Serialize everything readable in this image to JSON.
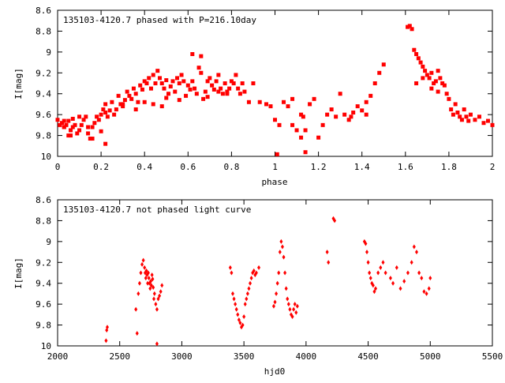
{
  "chart_data": [
    {
      "type": "scatter",
      "title": "135103-4120.7 phased with P=216.10day",
      "xlabel": "phase",
      "ylabel": "I[mag]",
      "xlim": [
        0,
        2
      ],
      "ylim": [
        10,
        8.6
      ],
      "y_inverted": true,
      "x_ticks": [
        "0",
        "0.2",
        "0.4",
        "0.6",
        "0.8",
        "1",
        "1.2",
        "1.4",
        "1.6",
        "1.8",
        "2"
      ],
      "y_ticks": [
        "8.6",
        "8.8",
        "9",
        "9.2",
        "9.4",
        "9.6",
        "9.8",
        "10"
      ],
      "grid": false,
      "marker_color": "#ff0000",
      "marker": "square",
      "series": [
        {
          "x": [
            0.0,
            0.01,
            0.02,
            0.03,
            0.03,
            0.04,
            0.05,
            0.05,
            0.06,
            0.07,
            0.07,
            0.08,
            0.09,
            0.1,
            0.1,
            0.11,
            0.12,
            0.13,
            0.14,
            0.14,
            0.15,
            0.16,
            0.17,
            0.18,
            0.19,
            0.2,
            0.2,
            0.21,
            0.22,
            0.22,
            0.23,
            0.24,
            0.25,
            0.26,
            0.27,
            0.28,
            0.29,
            0.3,
            0.31,
            0.32,
            0.33,
            0.34,
            0.35,
            0.36,
            0.37,
            0.38,
            0.39,
            0.4,
            0.41,
            0.42,
            0.43,
            0.44,
            0.45,
            0.46,
            0.47,
            0.48,
            0.49,
            0.5,
            0.51,
            0.52,
            0.53,
            0.54,
            0.55,
            0.56,
            0.57,
            0.58,
            0.59,
            0.6,
            0.61,
            0.62,
            0.63,
            0.64,
            0.65,
            0.66,
            0.67,
            0.68,
            0.69,
            0.7,
            0.71,
            0.72,
            0.73,
            0.74,
            0.75,
            0.76,
            0.77,
            0.78,
            0.79,
            0.8,
            0.81,
            0.82,
            0.83,
            0.84,
            0.85,
            0.86,
            0.88,
            0.9,
            0.93,
            0.96,
            0.98,
            1.0,
            1.02,
            1.04,
            1.06,
            1.08,
            1.1,
            1.12,
            1.13,
            1.14,
            1.16,
            1.18,
            1.2,
            1.22,
            1.24,
            1.26,
            1.28,
            1.3,
            1.32,
            1.34,
            1.36,
            1.38,
            1.4,
            1.42,
            1.44,
            1.46,
            1.48,
            1.5,
            1.62,
            1.63,
            1.64,
            1.65,
            1.66,
            1.67,
            1.68,
            1.69,
            1.7,
            1.71,
            1.72,
            1.73,
            1.74,
            1.75,
            1.76,
            1.77,
            1.78,
            1.79,
            1.8,
            1.81,
            1.82,
            1.83,
            1.84,
            1.85,
            1.86,
            1.87,
            1.88,
            1.89,
            1.9,
            1.92,
            1.94,
            1.96,
            1.98,
            2.0,
            0.62,
            0.66,
            0.69,
            0.44,
            0.48,
            0.36,
            0.22,
            0.16,
            0.06,
            0.03,
            0.3,
            0.4,
            0.5,
            0.56,
            0.74,
            0.78,
            1.14,
            1.12,
            1.01,
            1.08,
            1.35,
            1.42,
            1.65,
            1.72,
            1.61,
            1.68,
            1.75
          ],
          "y": [
            9.65,
            9.7,
            9.68,
            9.66,
            9.72,
            9.7,
            9.66,
            9.8,
            9.75,
            9.64,
            9.72,
            9.7,
            9.78,
            9.62,
            9.75,
            9.7,
            9.65,
            9.62,
            9.72,
            9.78,
            9.83,
            9.72,
            9.68,
            9.62,
            9.65,
            9.6,
            9.76,
            9.55,
            9.58,
            9.5,
            9.62,
            9.56,
            9.48,
            9.6,
            9.55,
            9.42,
            9.5,
            9.52,
            9.46,
            9.38,
            9.42,
            9.45,
            9.35,
            9.4,
            9.48,
            9.32,
            9.36,
            9.28,
            9.3,
            9.25,
            9.35,
            9.22,
            9.3,
            9.18,
            9.25,
            9.3,
            9.35,
            9.27,
            9.4,
            9.33,
            9.28,
            9.38,
            9.25,
            9.3,
            9.22,
            9.28,
            9.42,
            9.32,
            9.36,
            9.28,
            9.35,
            9.4,
            9.15,
            9.2,
            9.45,
            9.38,
            9.43,
            9.25,
            9.32,
            9.36,
            9.28,
            9.22,
            9.35,
            9.4,
            9.3,
            9.38,
            9.35,
            9.28,
            9.3,
            9.22,
            9.35,
            9.4,
            9.3,
            9.38,
            9.48,
            9.3,
            9.48,
            9.5,
            9.52,
            9.65,
            9.7,
            9.48,
            9.52,
            9.45,
            9.75,
            9.6,
            9.62,
            9.75,
            9.5,
            9.45,
            9.82,
            9.7,
            9.6,
            9.55,
            9.62,
            9.4,
            9.6,
            9.65,
            9.58,
            9.52,
            9.56,
            9.48,
            9.42,
            9.3,
            9.2,
            9.12,
            8.75,
            8.78,
            8.98,
            9.02,
            9.06,
            9.1,
            9.14,
            9.18,
            9.22,
            9.25,
            9.2,
            9.3,
            9.28,
            9.18,
            9.25,
            9.3,
            9.32,
            9.4,
            9.45,
            9.55,
            9.6,
            9.5,
            9.58,
            9.62,
            9.65,
            9.55,
            9.62,
            9.66,
            9.6,
            9.65,
            9.62,
            9.68,
            9.66,
            9.7,
            9.02,
            9.04,
            9.28,
            9.5,
            9.52,
            9.55,
            9.88,
            9.83,
            9.8,
            9.72,
            9.5,
            9.48,
            9.44,
            9.46,
            9.38,
            9.4,
            9.96,
            9.82,
            9.98,
            9.7,
            9.62,
            9.6,
            9.3,
            9.35,
            8.76,
            9.25,
            9.38
          ]
        }
      ]
    },
    {
      "type": "scatter",
      "title": "135103-4120.7 not phased light curve",
      "xlabel": "hjd0",
      "ylabel": "I[mag]",
      "xlim": [
        2000,
        5500
      ],
      "ylim": [
        10,
        8.6
      ],
      "y_inverted": true,
      "x_ticks": [
        "2000",
        "2500",
        "3000",
        "3500",
        "4000",
        "4500",
        "5000",
        "5500"
      ],
      "y_ticks": [
        "8.6",
        "8.8",
        "9",
        "9.2",
        "9.4",
        "9.6",
        "9.8",
        "10"
      ],
      "grid": false,
      "marker_color": "#ff0000",
      "marker": "diamond",
      "series": [
        {
          "x": [
            2390,
            2395,
            2400,
            2630,
            2640,
            2650,
            2660,
            2670,
            2680,
            2690,
            2700,
            2705,
            2710,
            2715,
            2720,
            2725,
            2730,
            2735,
            2740,
            2745,
            2750,
            2755,
            2760,
            2765,
            2770,
            2775,
            2780,
            2790,
            2800,
            2810,
            2820,
            2830,
            2840,
            2800,
            3390,
            3400,
            3410,
            3420,
            3430,
            3440,
            3450,
            3460,
            3470,
            3480,
            3490,
            3500,
            3510,
            3520,
            3530,
            3540,
            3550,
            3560,
            3570,
            3580,
            3590,
            3600,
            3620,
            3740,
            3750,
            3760,
            3770,
            3780,
            3790,
            3800,
            3810,
            3820,
            3830,
            3840,
            3850,
            3860,
            3870,
            3880,
            3890,
            3900,
            3910,
            3920,
            3930,
            4170,
            4180,
            4220,
            4230,
            4470,
            4480,
            4490,
            4500,
            4510,
            4520,
            4530,
            4540,
            4550,
            4560,
            4580,
            4600,
            4620,
            4640,
            4680,
            4700,
            4730,
            4760,
            4790,
            4820,
            4850,
            4870,
            4890,
            4910,
            4930,
            4950,
            4970,
            4990,
            5000
          ],
          "y": [
            9.95,
            9.85,
            9.82,
            9.65,
            9.88,
            9.5,
            9.4,
            9.3,
            9.22,
            9.18,
            9.25,
            9.3,
            9.35,
            9.28,
            9.32,
            9.4,
            9.3,
            9.35,
            9.4,
            9.45,
            9.38,
            9.42,
            9.32,
            9.36,
            9.44,
            9.55,
            9.5,
            9.6,
            9.65,
            9.55,
            9.52,
            9.48,
            9.42,
            9.98,
            9.25,
            9.3,
            9.5,
            9.55,
            9.6,
            9.65,
            9.7,
            9.75,
            9.78,
            9.82,
            9.8,
            9.72,
            9.6,
            9.55,
            9.5,
            9.45,
            9.4,
            9.35,
            9.3,
            9.28,
            9.32,
            9.3,
            9.25,
            9.62,
            9.58,
            9.5,
            9.4,
            9.3,
            9.1,
            9.0,
            9.05,
            9.15,
            9.3,
            9.45,
            9.55,
            9.6,
            9.65,
            9.7,
            9.72,
            9.65,
            9.6,
            9.68,
            9.62,
            9.1,
            9.2,
            8.78,
            8.8,
            9.0,
            9.02,
            9.1,
            9.2,
            9.3,
            9.35,
            9.4,
            9.42,
            9.48,
            9.45,
            9.3,
            9.25,
            9.2,
            9.3,
            9.35,
            9.4,
            9.25,
            9.45,
            9.38,
            9.3,
            9.2,
            9.05,
            9.1,
            9.3,
            9.35,
            9.48,
            9.5,
            9.45,
            9.35
          ]
        }
      ]
    }
  ]
}
